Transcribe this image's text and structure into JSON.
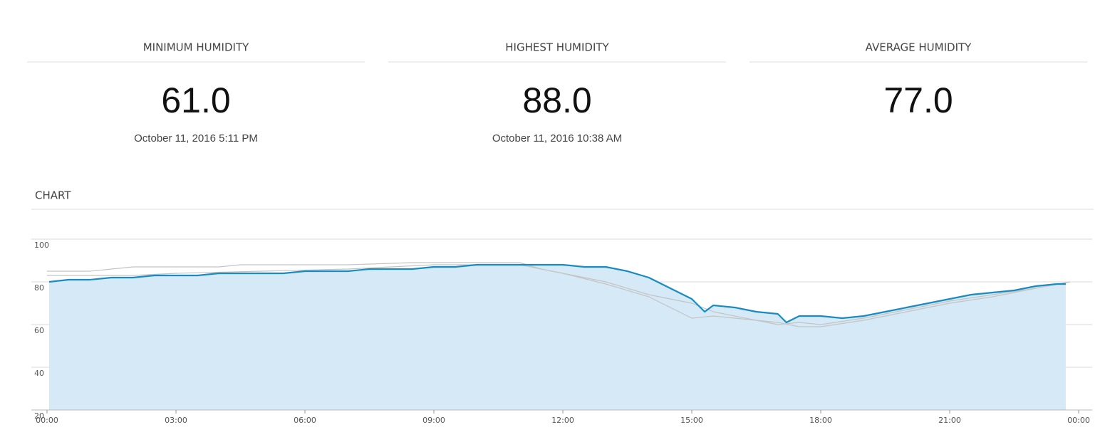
{
  "stats": [
    {
      "title": "MINIMUM HUMIDITY",
      "value": "61.0",
      "date": "October 11, 2016 5:11 PM"
    },
    {
      "title": "HIGHEST HUMIDITY",
      "value": "88.0",
      "date": "October 11, 2016 10:38 AM"
    },
    {
      "title": "AVERAGE HUMIDITY",
      "value": "77.0"
    }
  ],
  "chart_header": "CHART",
  "chart_data": {
    "type": "line",
    "xlim": [
      0,
      24
    ],
    "xticks": [
      {
        "value": 0,
        "label": "00:00"
      },
      {
        "value": 3,
        "label": "03:00"
      },
      {
        "value": 6,
        "label": "06:00"
      },
      {
        "value": 9,
        "label": "09:00"
      },
      {
        "value": 12,
        "label": "12:00"
      },
      {
        "value": 15,
        "label": "15:00"
      },
      {
        "value": 18,
        "label": "18:00"
      },
      {
        "value": 21,
        "label": "21:00"
      },
      {
        "value": 24,
        "label": "00:00"
      }
    ],
    "ylim": [
      20,
      100
    ],
    "yticks": [
      20,
      40,
      60,
      80,
      100
    ],
    "grid": true,
    "series": [
      {
        "color": "#c4c4c4",
        "x": [
          0,
          1,
          1.5,
          2,
          4,
          4.5,
          7,
          8.5,
          10,
          11,
          11.5,
          12,
          13,
          14,
          15,
          15.5,
          16.5,
          17,
          17.5,
          18,
          19,
          20,
          21,
          22,
          23,
          23.8
        ],
        "values": [
          85,
          85,
          86,
          87,
          87,
          88,
          88,
          89,
          89,
          89,
          86,
          84,
          80,
          74,
          70,
          66,
          62,
          60,
          61,
          60,
          63,
          67,
          71,
          74,
          77,
          80
        ]
      },
      {
        "color": "#c4c4c4",
        "x": [
          0,
          2,
          3,
          5,
          7,
          9,
          11,
          12,
          13,
          14,
          15,
          15.5,
          16,
          17,
          17.5,
          18,
          19,
          20,
          21,
          22,
          23,
          23.8
        ],
        "values": [
          83,
          83,
          84,
          85,
          86,
          88,
          88,
          84,
          79,
          73,
          63,
          64,
          63,
          61,
          59,
          59,
          62,
          66,
          70,
          73,
          77,
          80
        ]
      },
      {
        "color": "#1a8bbf",
        "fill": "#d5e9f6",
        "x": [
          0.05,
          0.5,
          1,
          1.5,
          2,
          2.5,
          3,
          3.5,
          4,
          4.5,
          5,
          5.5,
          6,
          6.5,
          7,
          7.5,
          8,
          8.5,
          9,
          9.5,
          10,
          10.6,
          11,
          11.5,
          12,
          12.5,
          13,
          13.5,
          14,
          14.5,
          15,
          15.3,
          15.5,
          16,
          16.5,
          17,
          17.2,
          17.5,
          18,
          18.5,
          19,
          19.5,
          20,
          20.5,
          21,
          21.5,
          22,
          22.5,
          23,
          23.5,
          23.7
        ],
        "values": [
          80,
          81,
          81,
          82,
          82,
          83,
          83,
          83,
          84,
          84,
          84,
          84,
          85,
          85,
          85,
          86,
          86,
          86,
          87,
          87,
          88,
          88,
          88,
          88,
          88,
          87,
          87,
          85,
          82,
          77,
          72,
          66,
          69,
          68,
          66,
          65,
          61,
          64,
          64,
          63,
          64,
          66,
          68,
          70,
          72,
          74,
          75,
          76,
          78,
          79,
          79
        ]
      }
    ]
  }
}
